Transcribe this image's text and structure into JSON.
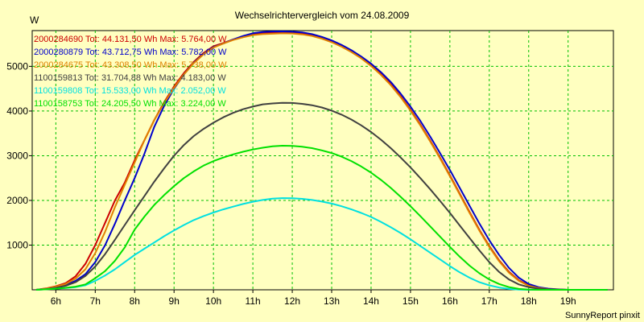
{
  "chart_data": {
    "type": "line",
    "title": "Wechselrichtervergleich vom 24.08.2009",
    "ylabel": "W",
    "xlabel": "",
    "footer": "SunnyReport pinxit",
    "xlim": [
      5.4,
      20.15
    ],
    "ylim": [
      0,
      5800
    ],
    "grid": true,
    "legend_position": "top-left",
    "x_ticks": [
      6,
      7,
      8,
      9,
      10,
      11,
      12,
      13,
      14,
      15,
      16,
      17,
      18,
      19
    ],
    "x_tick_labels": [
      "6h",
      "7h",
      "8h",
      "9h",
      "10h",
      "11h",
      "12h",
      "13h",
      "14h",
      "15h",
      "16h",
      "17h",
      "18h",
      "19h"
    ],
    "y_ticks": [
      1000,
      2000,
      3000,
      4000,
      5000
    ],
    "y_tick_labels": [
      "1000",
      "2000",
      "3000",
      "4000",
      "5000"
    ],
    "x": [
      5.5,
      5.75,
      6.0,
      6.25,
      6.5,
      6.75,
      7.0,
      7.25,
      7.5,
      7.75,
      8.0,
      8.25,
      8.5,
      8.75,
      9.0,
      9.25,
      9.5,
      9.75,
      10.0,
      10.25,
      10.5,
      10.75,
      11.0,
      11.25,
      11.5,
      11.75,
      12.0,
      12.25,
      12.5,
      12.75,
      13.0,
      13.25,
      13.5,
      13.75,
      14.0,
      14.25,
      14.5,
      14.75,
      15.0,
      15.25,
      15.5,
      15.75,
      16.0,
      16.25,
      16.5,
      16.75,
      17.0,
      17.25,
      17.5,
      17.75,
      18.0,
      18.25,
      18.5,
      18.75,
      19.0,
      19.25,
      19.5,
      19.75,
      20.0
    ],
    "colors": {
      "background": "#ffffc0",
      "grid": "#00c000",
      "axis": "#000000"
    },
    "series": [
      {
        "name": "2000284690",
        "legend": "2000284690 Tot: 44.131,50 Wh Max: 5.764,00 W",
        "color": "#cc0000",
        "values": [
          0,
          30,
          80,
          150,
          300,
          580,
          1000,
          1500,
          2000,
          2400,
          2900,
          3350,
          3800,
          4200,
          4550,
          4850,
          5100,
          5300,
          5450,
          5520,
          5600,
          5660,
          5710,
          5740,
          5750,
          5764,
          5760,
          5740,
          5700,
          5640,
          5560,
          5460,
          5340,
          5200,
          5030,
          4830,
          4600,
          4330,
          4030,
          3700,
          3340,
          2960,
          2560,
          2150,
          1740,
          1340,
          980,
          660,
          400,
          210,
          100,
          50,
          20,
          8,
          0,
          0,
          0,
          0,
          0
        ]
      },
      {
        "name": "2000280879",
        "legend": "2000280879 Tot: 43.712,75 Wh Max: 5.782,00 W",
        "color": "#0000cc",
        "values": [
          0,
          20,
          60,
          110,
          200,
          350,
          620,
          1000,
          1480,
          2000,
          2500,
          3050,
          3650,
          4120,
          4500,
          4820,
          5080,
          5280,
          5430,
          5510,
          5600,
          5680,
          5740,
          5770,
          5780,
          5782,
          5775,
          5760,
          5720,
          5660,
          5580,
          5480,
          5360,
          5220,
          5060,
          4870,
          4650,
          4390,
          4100,
          3780,
          3430,
          3060,
          2680,
          2280,
          1880,
          1480,
          1110,
          780,
          490,
          270,
          130,
          60,
          25,
          10,
          0,
          0,
          0,
          0,
          0
        ]
      },
      {
        "name": "2000284675",
        "legend": "2000284675 Tot: 43.308,50 Wh Max: 5.738,00 W",
        "color": "#e08000",
        "values": [
          0,
          25,
          70,
          130,
          250,
          460,
          820,
          1300,
          1850,
          2350,
          2850,
          3350,
          3800,
          4180,
          4520,
          4820,
          5070,
          5270,
          5420,
          5510,
          5590,
          5650,
          5700,
          5720,
          5730,
          5738,
          5735,
          5715,
          5680,
          5620,
          5540,
          5440,
          5320,
          5180,
          5010,
          4810,
          4580,
          4310,
          4010,
          3680,
          3320,
          2940,
          2540,
          2130,
          1720,
          1320,
          960,
          640,
          380,
          200,
          90,
          40,
          15,
          5,
          0,
          0,
          0,
          0,
          0
        ]
      },
      {
        "name": "1100159813",
        "legend": "1100159813 Tot: 31.704,88 Wh Max: 4.183,00 W",
        "color": "#404040",
        "values": [
          0,
          15,
          45,
          90,
          170,
          310,
          520,
          800,
          1120,
          1450,
          1780,
          2100,
          2420,
          2720,
          3000,
          3240,
          3440,
          3600,
          3740,
          3860,
          3960,
          4040,
          4100,
          4150,
          4170,
          4183,
          4180,
          4160,
          4130,
          4080,
          4010,
          3920,
          3810,
          3680,
          3530,
          3360,
          3170,
          2960,
          2740,
          2500,
          2250,
          1990,
          1720,
          1440,
          1160,
          880,
          620,
          400,
          230,
          120,
          60,
          25,
          10,
          0,
          0,
          0,
          0,
          0,
          0
        ]
      },
      {
        "name": "1100159808",
        "legend": "1100159808 Tot: 15.533,00 Wh Max: 2.052,00 W",
        "color": "#00e0e0",
        "values": [
          0,
          10,
          25,
          40,
          60,
          100,
          200,
          320,
          460,
          620,
          780,
          920,
          1060,
          1200,
          1330,
          1450,
          1560,
          1650,
          1730,
          1800,
          1860,
          1920,
          1970,
          2010,
          2040,
          2052,
          2048,
          2035,
          2010,
          1975,
          1930,
          1870,
          1800,
          1720,
          1630,
          1520,
          1400,
          1270,
          1130,
          980,
          830,
          680,
          530,
          390,
          270,
          170,
          100,
          50,
          20,
          5,
          0,
          0,
          0,
          0,
          0,
          0,
          0,
          0,
          0
        ]
      },
      {
        "name": "1100158753",
        "legend": "1100158753 Tot: 24.205,50 Wh Max: 3.224,00 W",
        "color": "#00e000",
        "values": [
          0,
          10,
          25,
          45,
          70,
          120,
          260,
          420,
          650,
          950,
          1350,
          1640,
          1900,
          2120,
          2320,
          2500,
          2650,
          2780,
          2880,
          2960,
          3030,
          3090,
          3140,
          3180,
          3210,
          3224,
          3220,
          3200,
          3170,
          3120,
          3060,
          2980,
          2880,
          2760,
          2620,
          2460,
          2280,
          2080,
          1870,
          1650,
          1420,
          1190,
          960,
          740,
          540,
          370,
          230,
          130,
          60,
          20,
          5,
          0,
          0,
          0,
          0,
          0,
          0,
          0,
          0
        ]
      }
    ]
  }
}
